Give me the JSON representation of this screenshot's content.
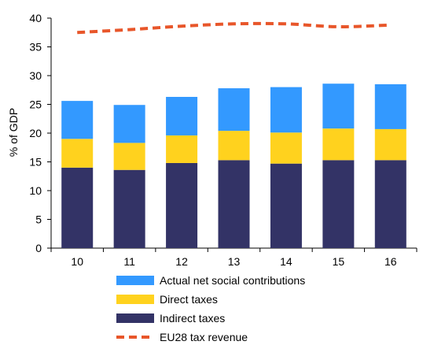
{
  "chart_data": {
    "type": "bar",
    "stacked": true,
    "categories": [
      "10",
      "11",
      "12",
      "13",
      "14",
      "15",
      "16"
    ],
    "series": [
      {
        "name": "Indirect taxes",
        "kind": "bar",
        "color": "#333366",
        "values": [
          14.0,
          13.6,
          14.8,
          15.3,
          14.7,
          15.3,
          15.3
        ]
      },
      {
        "name": "Direct taxes",
        "kind": "bar",
        "color": "#FFD21E",
        "values": [
          5.0,
          4.7,
          4.8,
          5.1,
          5.4,
          5.5,
          5.4
        ]
      },
      {
        "name": "Actual net social contributions",
        "kind": "bar",
        "color": "#3399FF",
        "values": [
          6.6,
          6.6,
          6.7,
          7.4,
          7.9,
          7.8,
          7.8
        ]
      },
      {
        "name": "EU28 tax revenue",
        "kind": "line",
        "style": "dashed",
        "color": "#E8562A",
        "values": [
          37.5,
          38.0,
          38.6,
          39.0,
          39.0,
          38.5,
          38.8
        ]
      }
    ],
    "ylabel": "% of GDP",
    "xlabel": "",
    "ylim": [
      0,
      40
    ],
    "yticks": [
      0,
      5,
      10,
      15,
      20,
      25,
      30,
      35,
      40
    ],
    "grid": false,
    "legend": {
      "position": "bottom",
      "order": [
        "Actual net social contributions",
        "Direct taxes",
        "Indirect taxes",
        "EU28 tax revenue"
      ]
    }
  }
}
